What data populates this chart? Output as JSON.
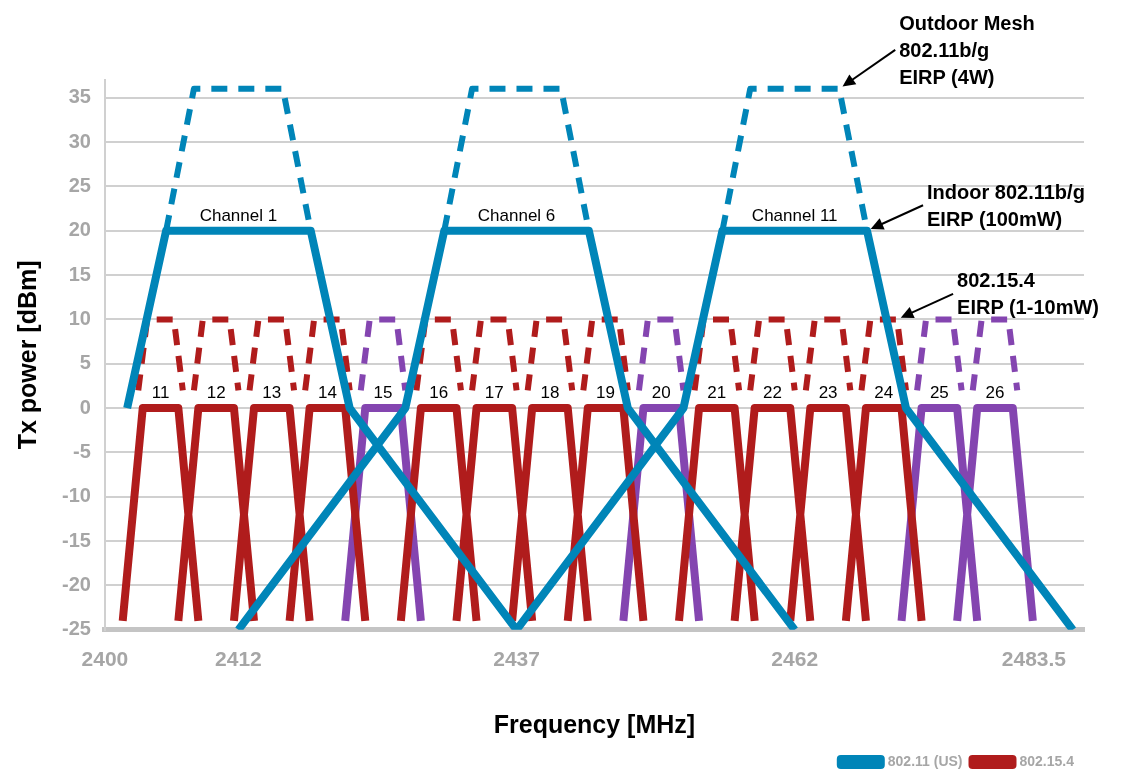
{
  "chart_data": {
    "type": "line",
    "xlabel": "Frequency [MHz]",
    "ylabel": "Tx power [dBm]",
    "xlim": [
      2400,
      2488
    ],
    "xticks": [
      2400,
      2412,
      2437,
      2462,
      2483.5
    ],
    "ylim": [
      -25,
      37
    ],
    "yticks": [
      -25,
      -20,
      -15,
      -10,
      -5,
      0,
      5,
      10,
      15,
      20,
      25,
      30,
      35
    ],
    "grid": "y",
    "legend": "bottom right",
    "marker": "none",
    "series": [
      {
        "name": "802.11 (US)",
        "color": "#0085b8",
        "line_style": "solid",
        "x": [
          2402,
          2405.5,
          2418.5,
          2422,
          2437,
          null,
          2412,
          2427,
          2430.5,
          2443.5,
          2447,
          2462,
          null,
          2437,
          2452,
          2455.5,
          2468.5,
          2472,
          2487
        ],
        "values": [
          0,
          20,
          20,
          0,
          -25,
          null,
          -25,
          0,
          20,
          20,
          0,
          -25,
          null,
          -25,
          0,
          20,
          20,
          0,
          -25
        ]
      },
      {
        "color": "#0085b8",
        "line_style": "dashed",
        "x": [
          2405.5,
          2408,
          2416,
          2418.5,
          null,
          2430.5,
          2433,
          2441,
          2443.5,
          null,
          2455.5,
          2458,
          2466,
          2468.5
        ],
        "values": [
          20,
          36,
          36,
          20,
          null,
          20,
          36,
          36,
          20,
          null,
          20,
          36,
          36,
          20
        ]
      },
      {
        "name": "802.15.4",
        "color": "#b01c1c",
        "line_style": "solid",
        "x": [
          2401.6,
          2403.4,
          2406.6,
          2408.4,
          null,
          2406.6,
          2408.4,
          2411.6,
          2413.4,
          null,
          2411.6,
          2413.4,
          2416.6,
          2418.4,
          null,
          2416.6,
          2418.4,
          2421.6,
          2423.4,
          null,
          2426.6,
          2428.4,
          2431.6,
          2433.4,
          null,
          2431.6,
          2433.4,
          2436.6,
          2438.4,
          null,
          2436.6,
          2438.4,
          2441.6,
          2443.4,
          null,
          2441.6,
          2443.4,
          2446.6,
          2448.4,
          null,
          2451.6,
          2453.4,
          2456.6,
          2458.4,
          null,
          2456.6,
          2458.4,
          2461.6,
          2463.4,
          null,
          2461.6,
          2463.4,
          2466.6,
          2468.4,
          null,
          2466.6,
          2468.4,
          2471.6,
          2473.4
        ],
        "values": [
          -24,
          0,
          0,
          -24,
          null,
          -24,
          0,
          0,
          -24,
          null,
          -24,
          0,
          0,
          -24,
          null,
          -24,
          0,
          0,
          -24,
          null,
          -24,
          0,
          0,
          -24,
          null,
          -24,
          0,
          0,
          -24,
          null,
          -24,
          0,
          0,
          -24,
          null,
          -24,
          0,
          0,
          -24,
          null,
          -24,
          0,
          0,
          -24,
          null,
          -24,
          0,
          0,
          -24,
          null,
          -24,
          0,
          0,
          -24,
          null,
          -24,
          0,
          0,
          -24
        ]
      },
      {
        "color": "#8445b0",
        "line_style": "solid",
        "x": [
          2421.6,
          2423.4,
          2426.6,
          2428.4,
          null,
          2446.6,
          2448.4,
          2451.6,
          2453.4,
          null,
          2471.6,
          2473.4,
          2476.6,
          2478.4,
          null,
          2476.6,
          2478.4,
          2481.6,
          2483.4
        ],
        "values": [
          -24,
          0,
          0,
          -24,
          null,
          -24,
          0,
          0,
          -24,
          null,
          -24,
          0,
          0,
          -24,
          null,
          -24,
          0,
          0,
          -24
        ]
      },
      {
        "color": "#b01c1c",
        "line_style": "dashed",
        "x": [
          2403,
          2403.8,
          2406.2,
          2407,
          null,
          2408,
          2408.8,
          2411.2,
          2412,
          null,
          2413,
          2413.8,
          2416.2,
          2417,
          null,
          2418,
          2418.8,
          2421.2,
          2422,
          null,
          2428,
          2428.8,
          2431.2,
          2432,
          null,
          2433,
          2433.8,
          2436.2,
          2437,
          null,
          2438,
          2438.8,
          2441.2,
          2442,
          null,
          2443,
          2443.8,
          2446.2,
          2447,
          null,
          2453,
          2453.8,
          2456.2,
          2457,
          null,
          2458,
          2458.8,
          2461.2,
          2462,
          null,
          2463,
          2463.8,
          2466.2,
          2467,
          null,
          2468,
          2468.8,
          2471.2,
          2472
        ],
        "values": [
          2,
          10,
          10,
          2,
          null,
          2,
          10,
          10,
          2,
          null,
          2,
          10,
          10,
          2,
          null,
          2,
          10,
          10,
          2,
          null,
          2,
          10,
          10,
          2,
          null,
          2,
          10,
          10,
          2,
          null,
          2,
          10,
          10,
          2,
          null,
          2,
          10,
          10,
          2,
          null,
          2,
          10,
          10,
          2,
          null,
          2,
          10,
          10,
          2,
          null,
          2,
          10,
          10,
          2,
          null,
          2,
          10,
          10,
          2
        ]
      },
      {
        "color": "#8445b0",
        "line_style": "dashed",
        "x": [
          2423,
          2423.8,
          2426.2,
          2427,
          null,
          2448,
          2448.8,
          2451.2,
          2452,
          null,
          2473,
          2473.8,
          2476.2,
          2477,
          null,
          2478,
          2478.8,
          2481.2,
          2482
        ],
        "values": [
          2,
          10,
          10,
          2,
          null,
          2,
          10,
          10,
          2,
          null,
          2,
          10,
          10,
          2,
          null,
          2,
          10,
          10,
          2
        ]
      }
    ],
    "annotations": [
      {
        "text": "Channel 1",
        "x": 2412,
        "y": 20
      },
      {
        "text": "Channel 6",
        "x": 2437,
        "y": 20
      },
      {
        "text": "Channel 11",
        "x": 2462,
        "y": 20
      },
      {
        "text": "11",
        "x": 2405,
        "y": 0
      },
      {
        "text": "12",
        "x": 2410,
        "y": 0
      },
      {
        "text": "13",
        "x": 2415,
        "y": 0
      },
      {
        "text": "14",
        "x": 2420,
        "y": 0
      },
      {
        "text": "15",
        "x": 2425,
        "y": 0
      },
      {
        "text": "16",
        "x": 2430,
        "y": 0
      },
      {
        "text": "17",
        "x": 2435,
        "y": 0
      },
      {
        "text": "18",
        "x": 2440,
        "y": 0
      },
      {
        "text": "19",
        "x": 2445,
        "y": 0
      },
      {
        "text": "20",
        "x": 2450,
        "y": 0
      },
      {
        "text": "21",
        "x": 2455,
        "y": 0
      },
      {
        "text": "22",
        "x": 2460,
        "y": 0
      },
      {
        "text": "23",
        "x": 2465,
        "y": 0
      },
      {
        "text": "24",
        "x": 2470,
        "y": 0
      },
      {
        "text": "25",
        "x": 2475,
        "y": 0
      },
      {
        "text": "26",
        "x": 2480,
        "y": 0
      },
      {
        "text": "Outdoor Mesh\n802.11b/g\nEIRP (4W)",
        "x": 2466,
        "y": 36
      },
      {
        "text": "Indoor 802.11b/g\nEIRP (100mW)",
        "x": 2468.5,
        "y": 20
      },
      {
        "text": "802.15.4\nEIRP (1-10mW)",
        "x": 2471.2,
        "y": 10
      }
    ]
  }
}
